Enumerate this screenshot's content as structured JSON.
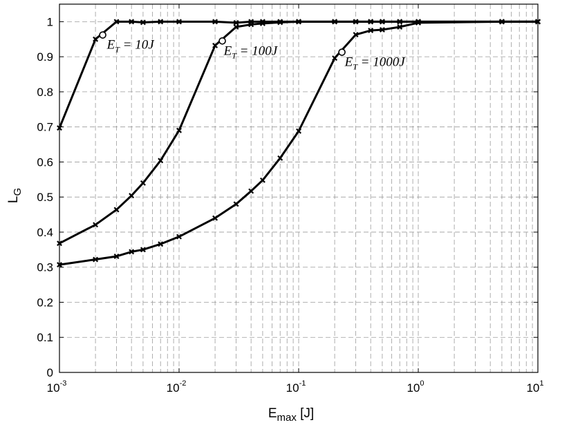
{
  "chart_data": {
    "type": "line",
    "xscale": "log",
    "xlim": [
      0.001,
      10
    ],
    "ylim": [
      0,
      1.05
    ],
    "xlabel": {
      "main": "E",
      "sub": "max",
      "unit": " [J]"
    },
    "ylabel": {
      "main": "L",
      "sub": "G"
    },
    "grid": true,
    "x_ticks": [
      {
        "base": "10",
        "exp": "-3"
      },
      {
        "base": "10",
        "exp": "-2"
      },
      {
        "base": "10",
        "exp": "-1"
      },
      {
        "base": "10",
        "exp": "0"
      },
      {
        "base": "10",
        "exp": "1"
      }
    ],
    "y_ticks": [
      "0",
      "0.1",
      "0.2",
      "0.3",
      "0.4",
      "0.5",
      "0.6",
      "0.7",
      "0.8",
      "0.9",
      "1"
    ],
    "series": [
      {
        "label": {
          "E": "E",
          "sub": "T",
          "rest": " = 10J"
        },
        "x": [
          0.001,
          0.002,
          0.003,
          0.004,
          0.005,
          0.007,
          0.01,
          0.02,
          0.03,
          0.04,
          0.05,
          0.07,
          0.1,
          0.2,
          0.3,
          0.4,
          0.5,
          0.7,
          1,
          5,
          10
        ],
        "y": [
          0.697,
          0.95,
          1.0,
          1.0,
          0.998,
          1.0,
          1.0,
          1.0,
          0.997,
          1.0,
          1.0,
          1.0,
          1.0,
          1.0,
          1.0,
          1.0,
          1.0,
          1.0,
          1.0,
          1.0,
          1.0
        ],
        "point": {
          "x": 0.0023,
          "y": 0.962
        }
      },
      {
        "label": {
          "E": "E",
          "sub": "T",
          "rest": " = 100J"
        },
        "x": [
          0.001,
          0.002,
          0.003,
          0.004,
          0.005,
          0.007,
          0.01,
          0.02,
          0.03,
          0.04,
          0.05,
          0.07,
          0.1,
          0.2,
          0.3,
          0.4,
          0.5,
          0.7,
          1,
          5,
          10
        ],
        "y": [
          0.368,
          0.421,
          0.464,
          0.504,
          0.54,
          0.604,
          0.69,
          0.932,
          0.985,
          0.992,
          0.995,
          0.998,
          1.0,
          1.0,
          1.0,
          1.0,
          1.0,
          1.0,
          1.0,
          1.0,
          1.0
        ],
        "point": {
          "x": 0.023,
          "y": 0.945
        }
      },
      {
        "label": {
          "E": "E",
          "sub": "T",
          "rest": " = 1000J"
        },
        "x": [
          0.001,
          0.002,
          0.003,
          0.004,
          0.005,
          0.007,
          0.01,
          0.02,
          0.03,
          0.04,
          0.05,
          0.07,
          0.1,
          0.2,
          0.3,
          0.4,
          0.5,
          0.7,
          1,
          5,
          10
        ],
        "y": [
          0.307,
          0.322,
          0.331,
          0.344,
          0.35,
          0.366,
          0.387,
          0.44,
          0.48,
          0.517,
          0.548,
          0.611,
          0.688,
          0.896,
          0.963,
          0.975,
          0.977,
          0.985,
          0.997,
          1.0,
          1.0
        ],
        "point": {
          "x": 0.23,
          "y": 0.913
        }
      }
    ]
  }
}
